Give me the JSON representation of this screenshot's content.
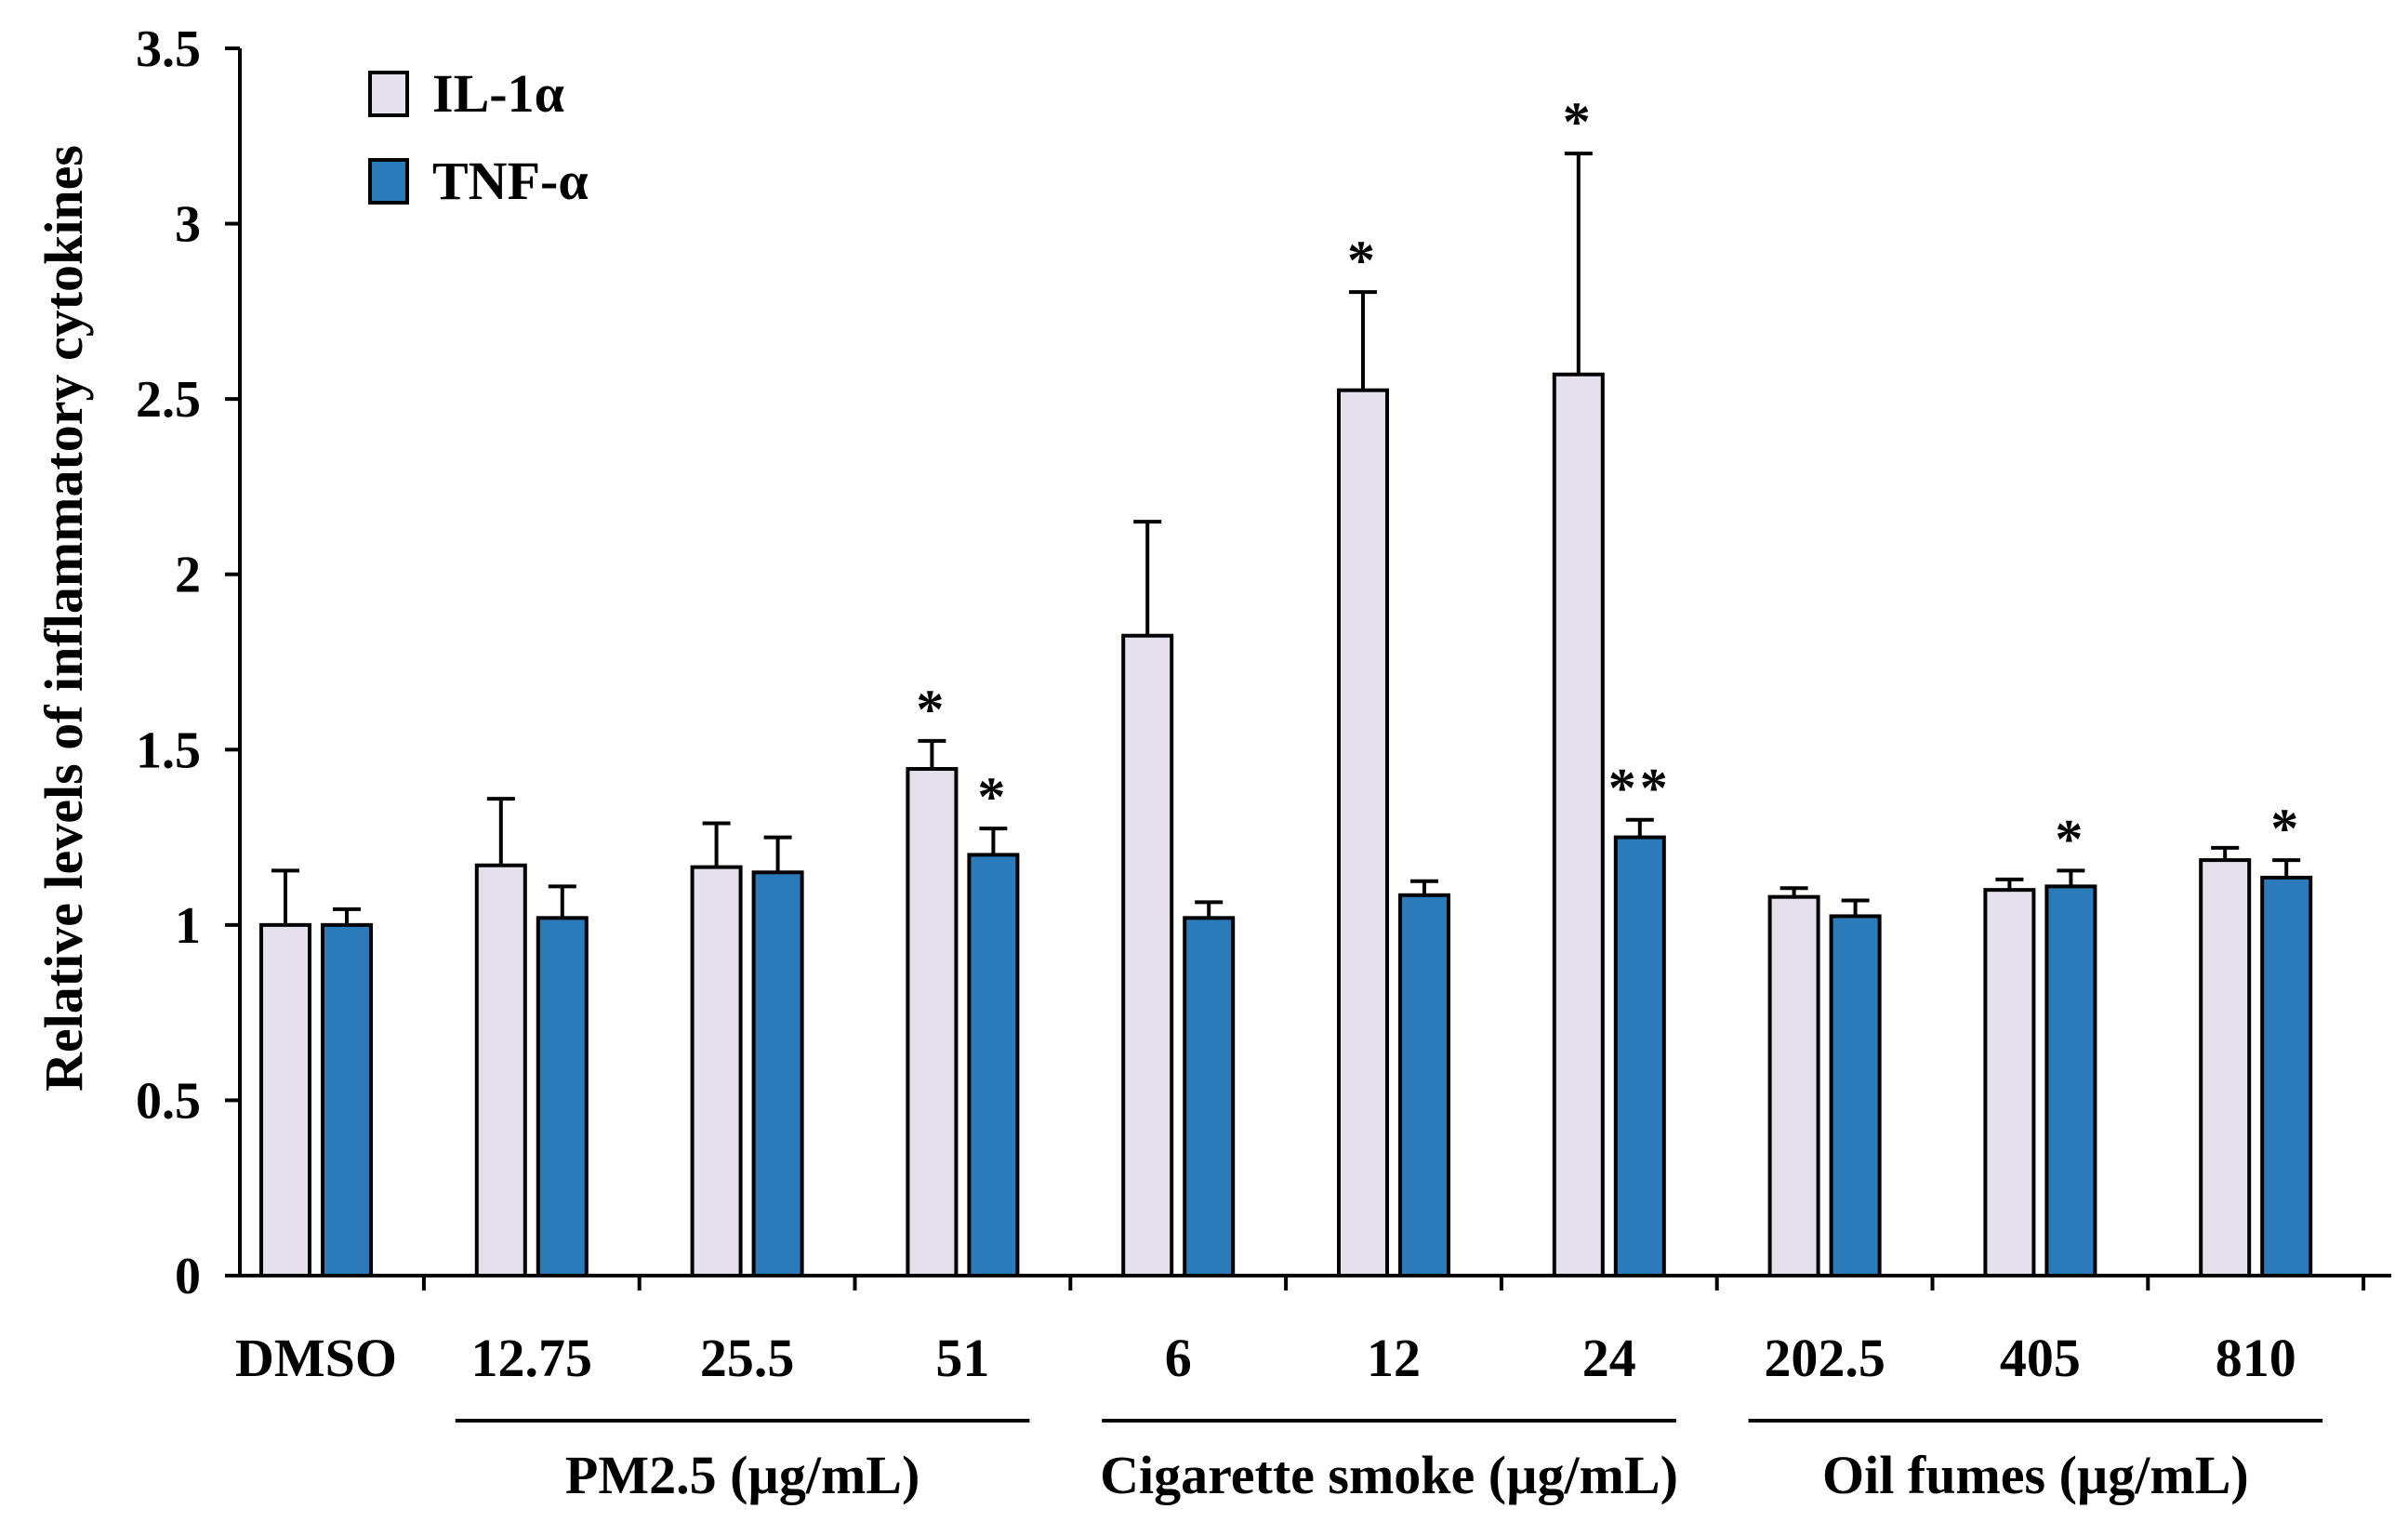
{
  "chart_data": {
    "type": "bar",
    "ylabel": "Relative levels of inflammatory cytokines",
    "ylim": [
      0,
      3.5
    ],
    "yticks": [
      {
        "value": 0,
        "label": "0"
      },
      {
        "value": 0.5,
        "label": "0.5"
      },
      {
        "value": 1,
        "label": "1"
      },
      {
        "value": 1.5,
        "label": "1.5"
      },
      {
        "value": 2,
        "label": "2"
      },
      {
        "value": 2.5,
        "label": "2.5"
      },
      {
        "value": 3,
        "label": "3"
      },
      {
        "value": 3.5,
        "label": "3.5"
      }
    ],
    "categories": [
      "DMSO",
      "12.75",
      "25.5",
      "51",
      "6",
      "12",
      "24",
      "202.5",
      "405",
      "810"
    ],
    "groups": [
      {
        "label": "PM2.5 (µg/mL)",
        "first": 1,
        "last": 3
      },
      {
        "label": "Cigarette smoke (µg/mL)",
        "first": 4,
        "last": 6
      },
      {
        "label": "Oil fumes (µg/mL)",
        "first": 7,
        "last": 9
      }
    ],
    "legend_position": "top-left",
    "series": [
      {
        "name": "IL-1α",
        "color": "#E6E0EC",
        "values": [
          1.0,
          1.17,
          1.165,
          1.445,
          1.825,
          2.525,
          2.57,
          1.08,
          1.1,
          1.185
        ],
        "errors": [
          0.155,
          0.19,
          0.125,
          0.08,
          0.325,
          0.28,
          0.63,
          0.025,
          0.03,
          0.035
        ],
        "significance": [
          "",
          "",
          "",
          "*",
          "",
          "*",
          "*",
          "",
          "",
          ""
        ]
      },
      {
        "name": "TNF-α",
        "color": "#2B7BBA",
        "values": [
          1.0,
          1.02,
          1.15,
          1.2,
          1.02,
          1.085,
          1.25,
          1.025,
          1.11,
          1.135
        ],
        "errors": [
          0.045,
          0.09,
          0.1,
          0.075,
          0.045,
          0.04,
          0.05,
          0.045,
          0.045,
          0.05
        ],
        "significance": [
          "",
          "",
          "",
          "*",
          "",
          "",
          "**",
          "",
          "*",
          "*"
        ]
      }
    ]
  }
}
